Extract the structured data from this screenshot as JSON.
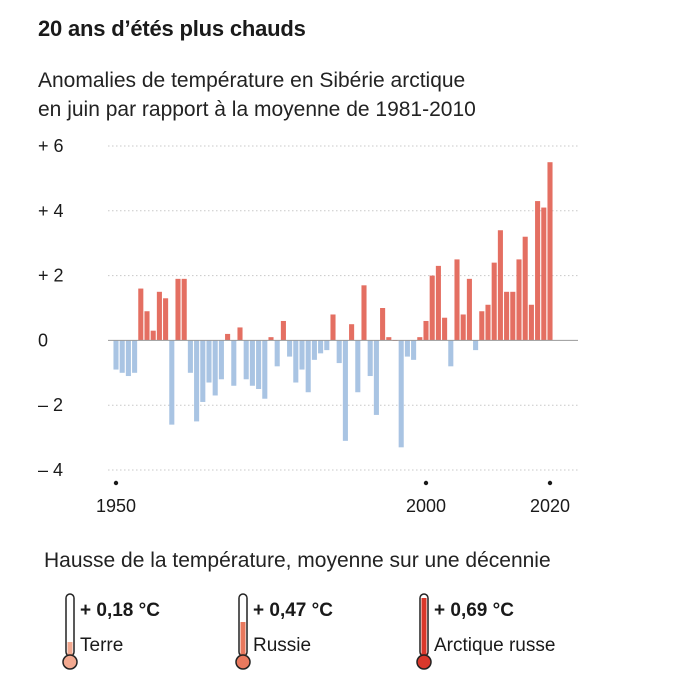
{
  "title": "20 ans d’étés plus chauds",
  "subtitle_line1": "Anomalies de température en Sibérie arctique",
  "subtitle_line2": "en juin par rapport à la moyenne de 1981-2010",
  "colors": {
    "positive": "#e46f62",
    "negative": "#a9c4e3",
    "therm_light": "#f3a990",
    "therm_mid": "#e9795e",
    "therm_dark": "#d9382b"
  },
  "chart_data": {
    "type": "bar",
    "title": "20 ans d’étés plus chauds",
    "subtitle": "Anomalies de température en Sibérie arctique en juin par rapport à la moyenne de 1981-2010",
    "xlabel": "",
    "ylabel": "",
    "ylim": [
      -4,
      6
    ],
    "yticks": [
      6,
      4,
      2,
      0,
      -2,
      -4
    ],
    "ytick_labels": [
      "+ 6",
      "+ 4",
      "+ 2",
      "0",
      "– 2",
      "– 4"
    ],
    "xlim": [
      1950,
      2020
    ],
    "xticks": [
      1950,
      2000,
      2020
    ],
    "xtick_labels": [
      "1950",
      "2000",
      "2020"
    ],
    "grid": true,
    "x": [
      1950,
      1951,
      1952,
      1953,
      1954,
      1955,
      1956,
      1957,
      1958,
      1959,
      1960,
      1961,
      1962,
      1963,
      1964,
      1965,
      1966,
      1967,
      1968,
      1969,
      1970,
      1971,
      1972,
      1973,
      1974,
      1975,
      1976,
      1977,
      1978,
      1979,
      1980,
      1981,
      1982,
      1983,
      1984,
      1985,
      1986,
      1987,
      1988,
      1989,
      1990,
      1991,
      1992,
      1993,
      1994,
      1995,
      1996,
      1997,
      1998,
      1999,
      2000,
      2001,
      2002,
      2003,
      2004,
      2005,
      2006,
      2007,
      2008,
      2009,
      2010,
      2011,
      2012,
      2013,
      2014,
      2015,
      2016,
      2017,
      2018,
      2019,
      2020
    ],
    "values": [
      -0.9,
      -1.0,
      -1.1,
      -1.0,
      1.6,
      0.9,
      0.3,
      1.5,
      1.3,
      -2.6,
      1.9,
      1.9,
      -1.0,
      -2.5,
      -1.9,
      -1.3,
      -1.7,
      -1.2,
      0.2,
      -1.4,
      0.4,
      -1.2,
      -1.4,
      -1.5,
      -1.8,
      0.1,
      -0.8,
      0.6,
      -0.5,
      -1.3,
      -0.9,
      -1.6,
      -0.6,
      -0.4,
      -0.3,
      0.8,
      -0.7,
      -3.1,
      0.5,
      -1.6,
      1.7,
      -1.1,
      -2.3,
      1.0,
      0.1,
      0.0,
      -3.3,
      -0.5,
      -0.6,
      0.1,
      0.6,
      2.0,
      2.3,
      0.7,
      -0.8,
      2.5,
      0.8,
      1.9,
      -0.3,
      0.9,
      1.1,
      2.4,
      3.4,
      1.5,
      1.5,
      2.5,
      3.2,
      1.1,
      4.3,
      4.1,
      5.5
    ]
  },
  "legend": {
    "title": "Hausse de la température, moyenne sur une décennie",
    "items": [
      {
        "value": "+ 0,18 °C",
        "label": "Terre",
        "level": 0.25
      },
      {
        "value": "+ 0,47 °C",
        "label": "Russie",
        "level": 0.55
      },
      {
        "value": "+ 0,69 °C",
        "label": "Arctique russe",
        "level": 0.9
      }
    ]
  }
}
